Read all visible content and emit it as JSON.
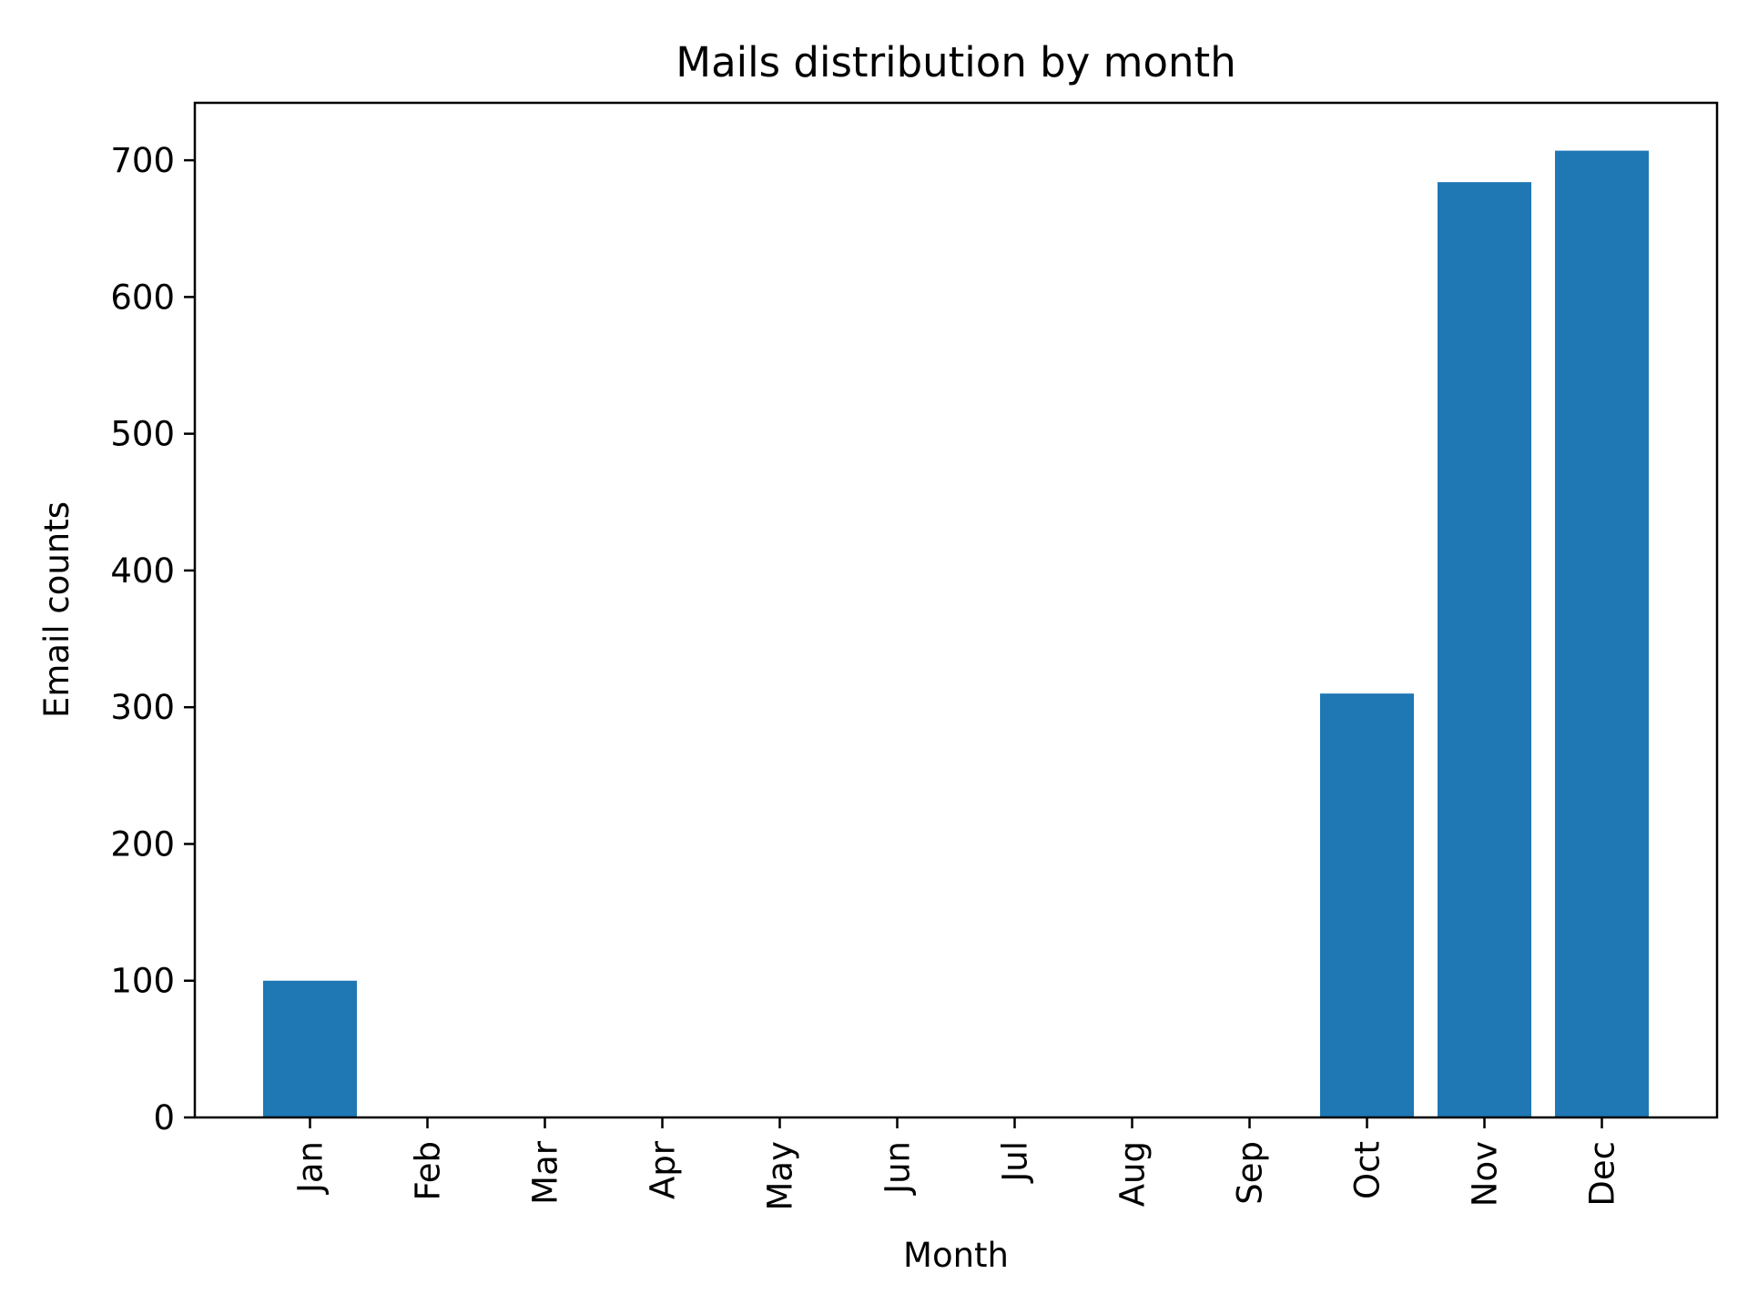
{
  "chart_data": {
    "type": "bar",
    "title": "Mails distribution by month",
    "xlabel": "Month",
    "ylabel": "Email counts",
    "categories": [
      "Jan",
      "Feb",
      "Mar",
      "Apr",
      "May",
      "Jun",
      "Jul",
      "Aug",
      "Sep",
      "Oct",
      "Nov",
      "Dec"
    ],
    "values": [
      100,
      0,
      0,
      0,
      0,
      0,
      0,
      0,
      0,
      310,
      684,
      707
    ],
    "yticks": [
      0,
      100,
      200,
      300,
      400,
      500,
      600,
      700
    ],
    "ylim": [
      0,
      742
    ],
    "grid": false,
    "legend": "none",
    "bar_color": "#1f77b4",
    "tick_label_rotation": "vertical"
  }
}
